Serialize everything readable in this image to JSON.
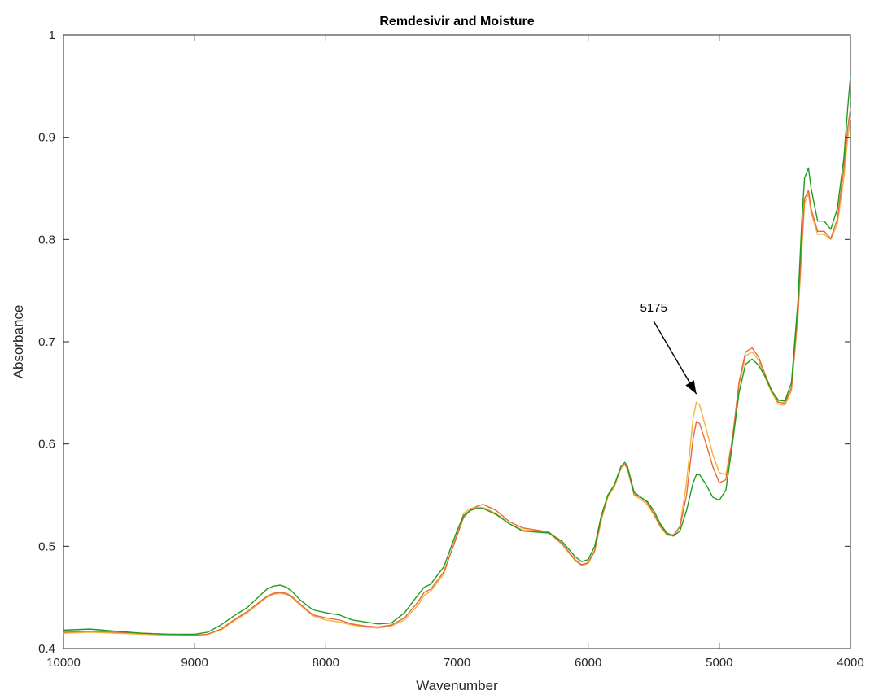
{
  "chart_data": {
    "type": "line",
    "title": "Remdesivir and Moisture",
    "xlabel": "Wavenumber",
    "ylabel": "Absorbance",
    "xlim": [
      10000,
      4000
    ],
    "x_reversed": true,
    "ylim": [
      0.4,
      1.0
    ],
    "xticks": [
      10000,
      9000,
      8000,
      7000,
      6000,
      5000,
      4000
    ],
    "yticks": [
      0.4,
      0.5,
      0.6,
      0.7,
      0.8,
      0.9,
      1.0
    ],
    "ytick_labels": [
      "0.4",
      "0.5",
      "0.6",
      "0.7",
      "0.8",
      "0.9",
      "1"
    ],
    "grid": false,
    "box": true,
    "colors": [
      "#1f9c1f",
      "#e36b3c",
      "#f4b23c"
    ],
    "series": [
      {
        "x": [
          10000,
          9800,
          9600,
          9400,
          9200,
          9000,
          8900,
          8800,
          8700,
          8600,
          8500,
          8450,
          8400,
          8350,
          8300,
          8250,
          8200,
          8100,
          8000,
          7900,
          7800,
          7700,
          7600,
          7500,
          7400,
          7300,
          7250,
          7200,
          7100,
          7000,
          6950,
          6900,
          6850,
          6800,
          6700,
          6600,
          6500,
          6400,
          6300,
          6200,
          6100,
          6050,
          6000,
          5950,
          5900,
          5850,
          5800,
          5750,
          5720,
          5700,
          5650,
          5600,
          5550,
          5500,
          5450,
          5400,
          5350,
          5300,
          5250,
          5200,
          5175,
          5150,
          5100,
          5050,
          5000,
          4950,
          4900,
          4850,
          4800,
          4750,
          4700,
          4650,
          4600,
          4550,
          4500,
          4450,
          4400,
          4370,
          4350,
          4320,
          4300,
          4250,
          4200,
          4150,
          4100,
          4050,
          4020,
          4000
        ],
        "values": [
          0.418,
          0.419,
          0.417,
          0.415,
          0.414,
          0.414,
          0.416,
          0.423,
          0.432,
          0.44,
          0.452,
          0.458,
          0.461,
          0.462,
          0.46,
          0.455,
          0.448,
          0.438,
          0.435,
          0.433,
          0.428,
          0.426,
          0.424,
          0.425,
          0.435,
          0.452,
          0.46,
          0.463,
          0.48,
          0.515,
          0.53,
          0.535,
          0.537,
          0.537,
          0.531,
          0.522,
          0.515,
          0.514,
          0.513,
          0.505,
          0.49,
          0.485,
          0.487,
          0.5,
          0.53,
          0.55,
          0.56,
          0.578,
          0.582,
          0.578,
          0.553,
          0.548,
          0.544,
          0.535,
          0.522,
          0.513,
          0.51,
          0.515,
          0.535,
          0.562,
          0.57,
          0.57,
          0.56,
          0.548,
          0.545,
          0.555,
          0.6,
          0.65,
          0.678,
          0.683,
          0.677,
          0.666,
          0.652,
          0.643,
          0.642,
          0.66,
          0.74,
          0.82,
          0.86,
          0.87,
          0.85,
          0.818,
          0.818,
          0.81,
          0.83,
          0.88,
          0.93,
          0.96
        ]
      },
      {
        "x": [
          10000,
          9800,
          9600,
          9400,
          9200,
          9000,
          8900,
          8800,
          8700,
          8600,
          8500,
          8450,
          8400,
          8350,
          8300,
          8250,
          8200,
          8100,
          8000,
          7900,
          7800,
          7700,
          7600,
          7500,
          7400,
          7300,
          7250,
          7200,
          7100,
          7000,
          6950,
          6900,
          6850,
          6800,
          6700,
          6600,
          6500,
          6400,
          6300,
          6200,
          6100,
          6050,
          6000,
          5950,
          5900,
          5850,
          5800,
          5750,
          5720,
          5700,
          5650,
          5600,
          5550,
          5500,
          5450,
          5400,
          5350,
          5300,
          5250,
          5200,
          5175,
          5150,
          5100,
          5050,
          5000,
          4950,
          4900,
          4850,
          4800,
          4750,
          4700,
          4650,
          4600,
          4550,
          4500,
          4450,
          4400,
          4370,
          4350,
          4320,
          4300,
          4250,
          4200,
          4150,
          4100,
          4050,
          4020,
          4000
        ],
        "values": [
          0.416,
          0.417,
          0.416,
          0.415,
          0.414,
          0.413,
          0.414,
          0.419,
          0.428,
          0.436,
          0.446,
          0.451,
          0.454,
          0.455,
          0.454,
          0.45,
          0.444,
          0.433,
          0.43,
          0.428,
          0.424,
          0.422,
          0.421,
          0.423,
          0.43,
          0.445,
          0.455,
          0.458,
          0.475,
          0.51,
          0.528,
          0.535,
          0.539,
          0.541,
          0.535,
          0.524,
          0.518,
          0.516,
          0.514,
          0.503,
          0.487,
          0.482,
          0.484,
          0.496,
          0.528,
          0.55,
          0.56,
          0.578,
          0.58,
          0.576,
          0.551,
          0.548,
          0.543,
          0.532,
          0.52,
          0.512,
          0.511,
          0.519,
          0.55,
          0.605,
          0.622,
          0.62,
          0.6,
          0.578,
          0.562,
          0.565,
          0.605,
          0.66,
          0.69,
          0.694,
          0.685,
          0.668,
          0.652,
          0.641,
          0.64,
          0.655,
          0.73,
          0.8,
          0.84,
          0.848,
          0.83,
          0.808,
          0.808,
          0.801,
          0.82,
          0.87,
          0.91,
          0.928
        ]
      },
      {
        "x": [
          10000,
          9800,
          9600,
          9400,
          9200,
          9000,
          8900,
          8800,
          8700,
          8600,
          8500,
          8450,
          8400,
          8350,
          8300,
          8250,
          8200,
          8100,
          8000,
          7900,
          7800,
          7700,
          7600,
          7500,
          7400,
          7300,
          7250,
          7200,
          7100,
          7000,
          6950,
          6900,
          6850,
          6800,
          6700,
          6600,
          6500,
          6400,
          6300,
          6200,
          6100,
          6050,
          6000,
          5950,
          5900,
          5850,
          5800,
          5750,
          5720,
          5700,
          5650,
          5600,
          5550,
          5500,
          5450,
          5400,
          5350,
          5300,
          5250,
          5200,
          5175,
          5150,
          5100,
          5050,
          5000,
          4950,
          4900,
          4850,
          4800,
          4750,
          4700,
          4650,
          4600,
          4550,
          4500,
          4450,
          4400,
          4370,
          4350,
          4320,
          4300,
          4250,
          4200,
          4150,
          4100,
          4050,
          4020,
          4000
        ],
        "values": [
          0.415,
          0.416,
          0.415,
          0.414,
          0.413,
          0.413,
          0.414,
          0.418,
          0.427,
          0.435,
          0.445,
          0.45,
          0.453,
          0.454,
          0.453,
          0.449,
          0.443,
          0.432,
          0.428,
          0.426,
          0.423,
          0.421,
          0.42,
          0.422,
          0.428,
          0.442,
          0.452,
          0.456,
          0.473,
          0.512,
          0.532,
          0.537,
          0.538,
          0.538,
          0.532,
          0.522,
          0.516,
          0.515,
          0.513,
          0.502,
          0.486,
          0.481,
          0.483,
          0.495,
          0.525,
          0.548,
          0.558,
          0.576,
          0.58,
          0.575,
          0.55,
          0.546,
          0.541,
          0.531,
          0.519,
          0.511,
          0.51,
          0.52,
          0.562,
          0.625,
          0.641,
          0.638,
          0.615,
          0.59,
          0.572,
          0.57,
          0.605,
          0.657,
          0.686,
          0.69,
          0.682,
          0.665,
          0.65,
          0.639,
          0.638,
          0.652,
          0.725,
          0.79,
          0.835,
          0.845,
          0.826,
          0.805,
          0.805,
          0.8,
          0.815,
          0.86,
          0.9,
          0.92
        ]
      }
    ],
    "annotations": [
      {
        "text": "5175",
        "arrow_from": [
          5500,
          0.72
        ],
        "arrow_to": [
          5175,
          0.649
        ]
      }
    ]
  }
}
